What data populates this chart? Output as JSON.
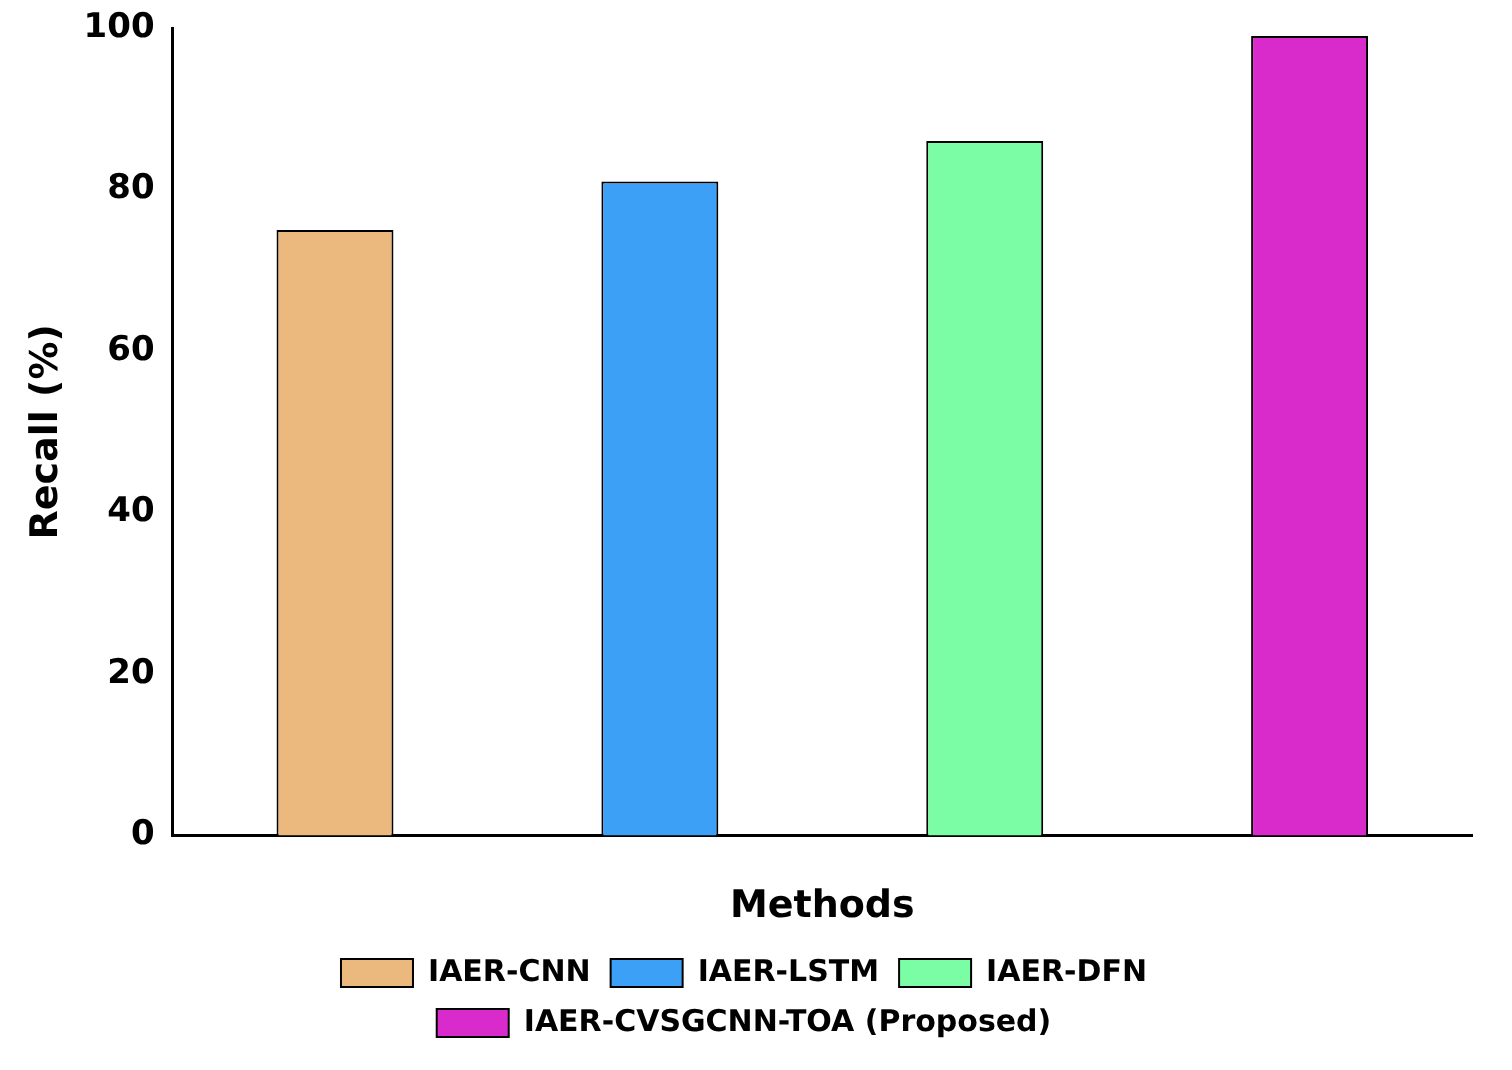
{
  "chart_data": {
    "type": "bar",
    "xlabel": "Methods",
    "ylabel": "Recall (%)",
    "categories": [
      null,
      null,
      null,
      null
    ],
    "series": [
      {
        "name": "IAER-CNN",
        "color": "#ebb97e",
        "values": [
          75,
          null,
          null,
          null
        ]
      },
      {
        "name": "IAER-LSTM",
        "color": "#3ba0f6",
        "values": [
          null,
          81,
          null,
          null
        ]
      },
      {
        "name": "IAER-DFN",
        "color": "#7bfda5",
        "values": [
          null,
          null,
          86,
          null
        ]
      },
      {
        "name": "IAER-CVSGCNN-TOA (Proposed)",
        "color": "#d92bcb",
        "values": [
          null,
          null,
          null,
          99
        ]
      }
    ],
    "ylim": [
      0,
      100
    ],
    "yticks": [
      0,
      20,
      40,
      60,
      80,
      100
    ],
    "grid": false,
    "legend": "bottom"
  }
}
